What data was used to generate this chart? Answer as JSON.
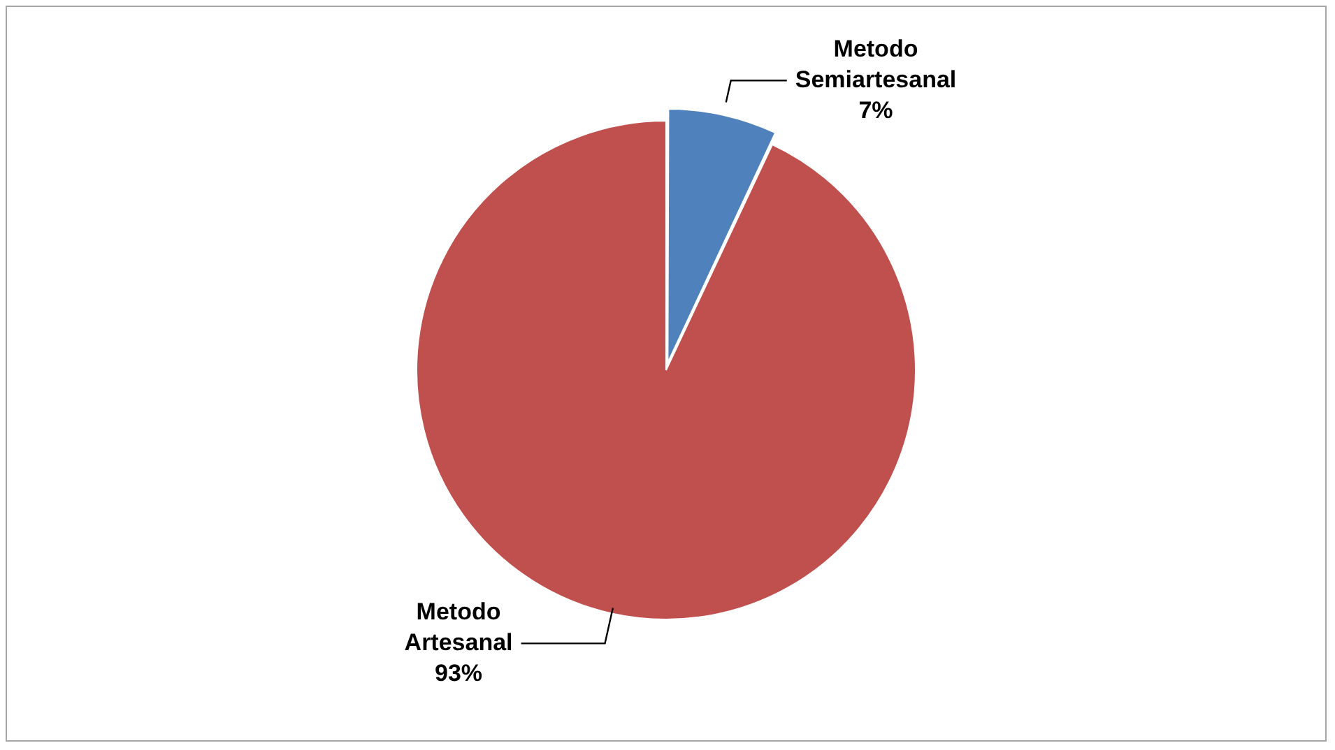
{
  "chart_data": {
    "type": "pie",
    "categories": [
      "Metodo Semiartesanal",
      "Metodo Artesanal"
    ],
    "values": [
      7,
      93
    ],
    "colors": [
      "#4f81bd",
      "#c0504d"
    ],
    "value_labels": [
      "7%",
      "93%"
    ],
    "legend": false
  }
}
